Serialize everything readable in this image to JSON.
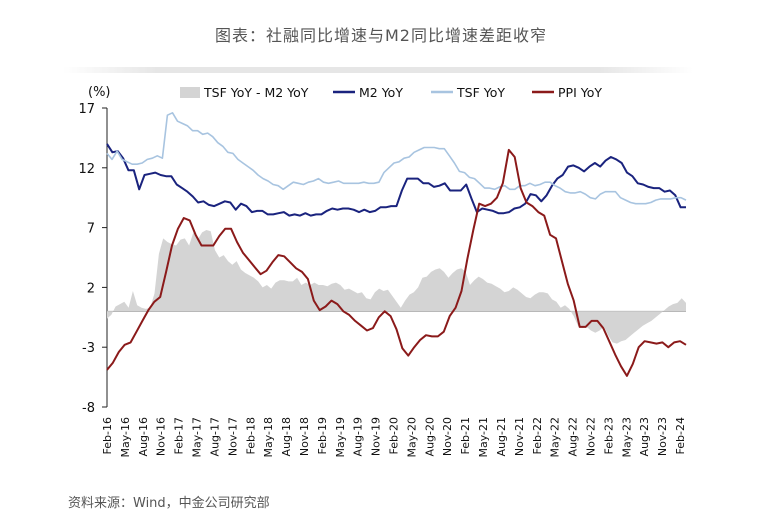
{
  "title": "图表：社融同比增速与M2同比增速差距收窄",
  "source": "资料来源：Wind，中金公司研究部",
  "chart_data": {
    "type": "line",
    "unit": "(%)",
    "ylim": [
      -8,
      17
    ],
    "yticks": [
      17,
      12,
      7,
      2,
      -3,
      -8
    ],
    "x_start": "2016-02",
    "x_end": "2024-03",
    "xtick_labels": [
      "Feb-16",
      "May-16",
      "Aug-16",
      "Nov-16",
      "Feb-17",
      "May-17",
      "Aug-17",
      "Nov-17",
      "Feb-18",
      "May-18",
      "Aug-18",
      "Nov-18",
      "Feb-19",
      "May-19",
      "Aug-19",
      "Nov-19",
      "Feb-20",
      "May-20",
      "Aug-20",
      "Nov-20",
      "Feb-21",
      "May-21",
      "Aug-21",
      "Nov-21",
      "Feb-22",
      "May-22",
      "Aug-22",
      "Nov-22",
      "Feb-23",
      "May-23",
      "Aug-23",
      "Nov-23",
      "Feb-24"
    ],
    "legend": [
      "TSF YoY - M2 YoY",
      "M2 YoY",
      "TSF YoY",
      "PPI YoY"
    ],
    "series": [
      {
        "name": "TSF YoY - M2 YoY",
        "kind": "area",
        "color": "#d4d4d4",
        "values": [
          -0.6,
          -0.3,
          0.4,
          0.6,
          0.8,
          0.3,
          1.7,
          0.5,
          0.3,
          0.2,
          0.3,
          1.5,
          4.8,
          6.1,
          5.8,
          5.6,
          5.5,
          6,
          6.1,
          5.5,
          6.6,
          6,
          6.6,
          6.8,
          6.7,
          5.1,
          4.5,
          4.7,
          4.2,
          3.9,
          4.2,
          3.5,
          3.2,
          3,
          2.8,
          2.5,
          2,
          2.2,
          1.9,
          2.4,
          2.6,
          2.6,
          2.5,
          2.5,
          2.8,
          2.2,
          2.4,
          2.2,
          2.4,
          2.2,
          2.2,
          2.1,
          2.3,
          2.4,
          2.2,
          1.8,
          1.9,
          1.7,
          1.5,
          1.6,
          1.1,
          1,
          1.6,
          1.9,
          1.7,
          1.8,
          1.3,
          0.8,
          0.3,
          0.9,
          1.4,
          1.6,
          2,
          2.8,
          2.9,
          3.3,
          3.5,
          3.6,
          3.3,
          2.8,
          3.2,
          3.5,
          3.6,
          3.3,
          2.2,
          2.6,
          2.9,
          2.7,
          2.4,
          2.3,
          2.1,
          1.9,
          1.6,
          1.7,
          2,
          1.8,
          1.5,
          1.2,
          1.1,
          1.4,
          1.6,
          1.6,
          1.5,
          1,
          0.8,
          0.3,
          0.5,
          0.2,
          -0.4,
          -1.2,
          -1.4,
          -1.3,
          -1.6,
          -1.8,
          -1.6,
          -1.3,
          -2,
          -2.6,
          -2.7,
          -2.5,
          -2.4,
          -2.1,
          -1.8,
          -1.5,
          -1.2,
          -1,
          -0.8,
          -0.5,
          -0.2,
          0.1,
          0.4,
          0.6,
          0.7,
          1.1,
          0.7
        ]
      },
      {
        "name": "M2 YoY",
        "kind": "line",
        "color": "#1a237e",
        "values": [
          14,
          13.3,
          13.4,
          12.8,
          11.8,
          11.8,
          10.2,
          11.4,
          11.5,
          11.6,
          11.4,
          11.3,
          11.3,
          10.6,
          10.3,
          10,
          9.6,
          9.1,
          9.2,
          8.9,
          8.8,
          9,
          9.2,
          9.1,
          8.5,
          9,
          8.8,
          8.3,
          8.4,
          8.4,
          8.1,
          8.1,
          8.2,
          8.3,
          8,
          8.1,
          8,
          8.2,
          8,
          8.1,
          8.1,
          8.4,
          8.6,
          8.5,
          8.6,
          8.6,
          8.5,
          8.3,
          8.5,
          8.3,
          8.4,
          8.7,
          8.7,
          8.8,
          8.8,
          10.1,
          11.1,
          11.1,
          11.1,
          10.7,
          10.7,
          10.4,
          10.5,
          10.7,
          10.1,
          10.1,
          10.1,
          10.6,
          9.4,
          8.3,
          8.6,
          8.5,
          8.4,
          8.2,
          8.2,
          8.3,
          8.6,
          8.7,
          9,
          9.8,
          9.7,
          9.2,
          9.7,
          10.5,
          11.1,
          11.4,
          12.1,
          12.2,
          12,
          11.7,
          12.1,
          12.4,
          12.1,
          12.6,
          12.9,
          12.7,
          12.4,
          11.6,
          11.3,
          10.7,
          10.6,
          10.4,
          10.3,
          10.3,
          10,
          10.1,
          9.7,
          8.7,
          8.7
        ]
      },
      {
        "name": "TSF YoY",
        "kind": "line",
        "color": "#a8c4e0",
        "values": [
          13.2,
          12.7,
          13.4,
          12.7,
          12.5,
          12.3,
          12.3,
          12.4,
          12.7,
          12.8,
          13,
          12.8,
          16.4,
          16.6,
          15.9,
          15.7,
          15.5,
          15.1,
          15.1,
          14.8,
          14.9,
          14.6,
          14.1,
          13.8,
          13.3,
          13.2,
          12.7,
          12.4,
          12.1,
          11.8,
          11.4,
          11.1,
          10.9,
          10.6,
          10.5,
          10.2,
          10.5,
          10.8,
          10.7,
          10.6,
          10.8,
          10.9,
          11.1,
          10.8,
          10.7,
          10.8,
          10.9,
          10.7,
          10.7,
          10.7,
          10.7,
          10.8,
          10.7,
          10.7,
          10.8,
          11.6,
          12,
          12.4,
          12.5,
          12.8,
          12.9,
          13.3,
          13.5,
          13.7,
          13.7,
          13.7,
          13.6,
          13.6,
          13,
          12.4,
          11.7,
          11.6,
          11.2,
          11.1,
          10.7,
          10.3,
          10.3,
          10.2,
          10.4,
          10.5,
          10.2,
          10.2,
          10.5,
          10.5,
          10.7,
          10.5,
          10.6,
          10.8,
          10.8,
          10.5,
          10.3,
          10,
          9.9,
          9.9,
          10,
          9.8,
          9.5,
          9.4,
          9.8,
          10,
          10,
          10,
          9.5,
          9.3,
          9.1,
          9,
          9,
          9,
          9.1,
          9.3,
          9.4,
          9.4,
          9.4,
          9.5,
          9.5,
          9.3
        ]
      },
      {
        "name": "PPI YoY",
        "kind": "line",
        "color": "#8b1a1a",
        "values": [
          -4.9,
          -4.3,
          -3.4,
          -2.8,
          -2.6,
          -1.7,
          -0.8,
          0.1,
          0.8,
          1.2,
          3.3,
          5.5,
          6.9,
          7.8,
          7.6,
          6.4,
          5.5,
          5.5,
          5.5,
          6.3,
          6.9,
          6.9,
          5.8,
          4.9,
          4.3,
          3.7,
          3.1,
          3.4,
          4.1,
          4.7,
          4.6,
          4.1,
          3.6,
          3.3,
          2.7,
          0.9,
          0.1,
          0.4,
          0.9,
          0.6,
          0,
          -0.3,
          -0.8,
          -1.2,
          -1.6,
          -1.4,
          -0.5,
          0,
          -0.4,
          -1.5,
          -3.1,
          -3.7,
          -3,
          -2.4,
          -2,
          -2.1,
          -2.1,
          -1.7,
          -0.4,
          0.3,
          1.7,
          4.4,
          6.8,
          9,
          8.8,
          9,
          9.5,
          10.7,
          13.5,
          12.9,
          10.3,
          9.1,
          8.8,
          8.3,
          8,
          6.4,
          6.1,
          4.2,
          2.3,
          0.9,
          -1.3,
          -1.3,
          -0.8,
          -0.8,
          -1.4,
          -2.5,
          -3.6,
          -4.6,
          -5.4,
          -4.4,
          -3,
          -2.5,
          -2.6,
          -2.7,
          -2.6,
          -3,
          -2.6,
          -2.5,
          -2.8
        ]
      }
    ]
  }
}
